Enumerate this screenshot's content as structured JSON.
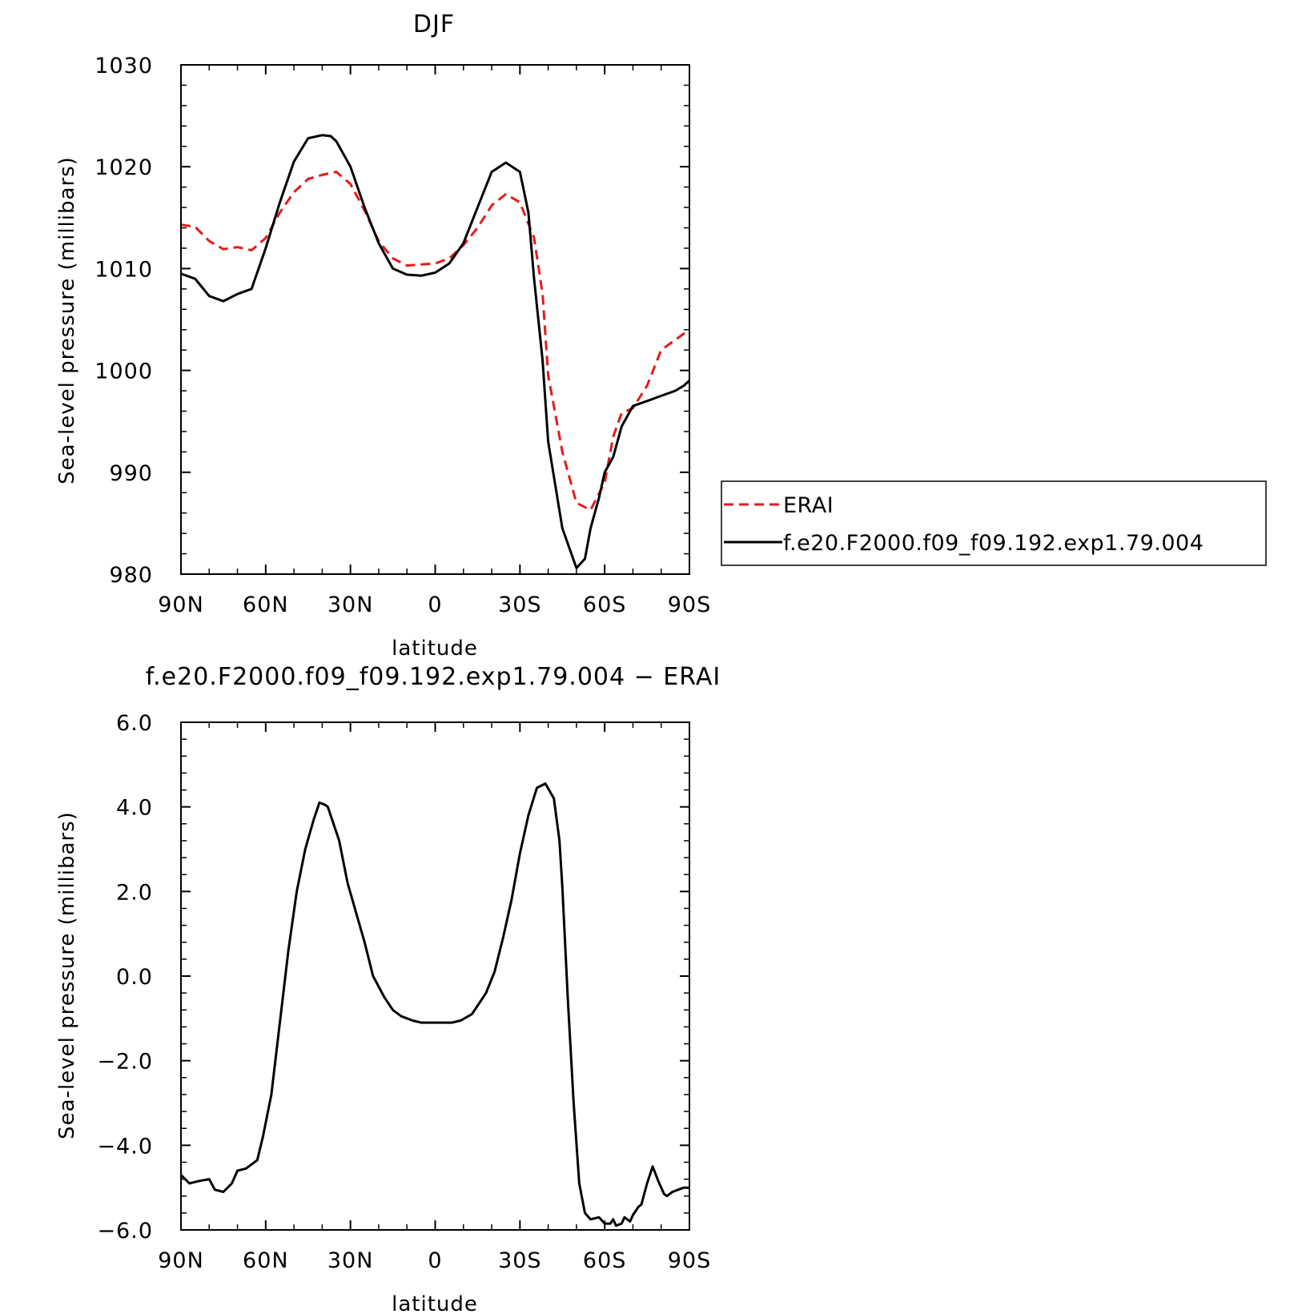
{
  "colors": {
    "erai": "#e41a1c",
    "model": "#000000",
    "axes": "#000000"
  },
  "chart_data": [
    {
      "type": "line",
      "title": "DJF",
      "xlabel": "latitude",
      "ylabel": "Sea-level pressure (millibars)",
      "xlim": [
        90,
        -90
      ],
      "ylim": [
        980,
        1030
      ],
      "xticks": [
        90,
        60,
        30,
        0,
        -30,
        -60,
        -90
      ],
      "xtick_labels": [
        "90N",
        "60N",
        "30N",
        "0",
        "30S",
        "60S",
        "90S"
      ],
      "yticks": [
        980,
        990,
        1000,
        1010,
        1020,
        1030
      ],
      "ytick_labels": [
        "980",
        "990",
        "1000",
        "1010",
        "1020",
        "1030"
      ],
      "legend": {
        "placement": "right",
        "entries": [
          "ERAI",
          "f.e20.F2000.f09_f09.192.exp1.79.004"
        ]
      },
      "series": [
        {
          "name": "ERAI",
          "style": "dashed",
          "color": "#e41a1c",
          "x": [
            90,
            85,
            80,
            75,
            70,
            65,
            60,
            55,
            50,
            45,
            40,
            35,
            30,
            25,
            20,
            15,
            10,
            5,
            0,
            -5,
            -10,
            -15,
            -20,
            -25,
            -30,
            -35,
            -38,
            -40,
            -45,
            -50,
            -55,
            -60,
            -63,
            -66,
            -70,
            -75,
            -80,
            -85,
            -90
          ],
          "y": [
            1014.3,
            1014.1,
            1012.7,
            1011.9,
            1012.1,
            1011.8,
            1013.0,
            1015.5,
            1017.5,
            1018.8,
            1019.2,
            1019.5,
            1018.3,
            1015.7,
            1012.7,
            1011.0,
            1010.3,
            1010.4,
            1010.5,
            1011.0,
            1012.3,
            1014.0,
            1016.2,
            1017.3,
            1016.5,
            1013.0,
            1007.5,
            999.5,
            992.0,
            987.0,
            986.3,
            989.0,
            993.5,
            995.8,
            996.3,
            998.5,
            1002.0,
            1003.0,
            1004.0
          ]
        },
        {
          "name": "f.e20.F2000.f09_f09.192.exp1.79.004",
          "style": "solid",
          "color": "#000000",
          "x": [
            90,
            85,
            80,
            75,
            70,
            65,
            60,
            55,
            50,
            45,
            40,
            37,
            35,
            30,
            25,
            20,
            15,
            10,
            5,
            0,
            -5,
            -10,
            -15,
            -20,
            -25,
            -30,
            -33,
            -35,
            -38,
            -40,
            -45,
            -50,
            -53,
            -55,
            -58,
            -60,
            -63,
            -66,
            -70,
            -75,
            -80,
            -85,
            -88,
            -90
          ],
          "y": [
            1009.5,
            1009.0,
            1007.3,
            1006.8,
            1007.5,
            1008.0,
            1012.0,
            1016.5,
            1020.5,
            1022.8,
            1023.1,
            1023.0,
            1022.5,
            1020.0,
            1016.0,
            1012.5,
            1010.0,
            1009.4,
            1009.3,
            1009.6,
            1010.5,
            1012.5,
            1016.0,
            1019.5,
            1020.4,
            1019.5,
            1015.5,
            1009.0,
            1001.0,
            993.0,
            984.5,
            980.6,
            981.5,
            984.5,
            987.5,
            990.0,
            991.5,
            994.5,
            996.5,
            997.0,
            997.5,
            998.0,
            998.5,
            999.0
          ]
        }
      ]
    },
    {
      "type": "line",
      "title": "f.e20.F2000.f09_f09.192.exp1.79.004 − ERAI",
      "xlabel": "latitude",
      "ylabel": "Sea-level pressure (millibars)",
      "xlim": [
        90,
        -90
      ],
      "ylim": [
        -6,
        6
      ],
      "xticks": [
        90,
        60,
        30,
        0,
        -30,
        -60,
        -90
      ],
      "xtick_labels": [
        "90N",
        "60N",
        "30N",
        "0",
        "30S",
        "60S",
        "90S"
      ],
      "yticks": [
        -6,
        -4,
        -2,
        0,
        2,
        4,
        6
      ],
      "ytick_labels": [
        "−6.0",
        "−4.0",
        "−2.0",
        "0.0",
        "2.0",
        "4.0",
        "6.0"
      ],
      "series": [
        {
          "name": "",
          "style": "solid",
          "color": "#000000",
          "x": [
            90,
            87,
            84,
            80,
            78,
            75,
            72,
            70,
            67,
            63,
            61,
            58,
            55,
            52,
            49,
            46,
            43,
            41,
            39,
            38,
            36,
            34,
            31,
            28,
            25,
            22,
            18,
            15,
            12,
            8,
            5,
            2,
            0,
            -3,
            -6,
            -9,
            -13,
            -15,
            -18,
            -21,
            -24,
            -27,
            -30,
            -33,
            -36,
            -39,
            -42,
            -44,
            -45,
            -47,
            -49,
            -51,
            -53,
            -55,
            -58,
            -60,
            -62,
            -63,
            -64,
            -66,
            -67,
            -69,
            -70,
            -72,
            -73,
            -75,
            -77,
            -79,
            -81,
            -82,
            -84,
            -86,
            -88,
            -90
          ],
          "y": [
            -4.7,
            -4.9,
            -4.85,
            -4.8,
            -5.05,
            -5.1,
            -4.9,
            -4.6,
            -4.55,
            -4.35,
            -3.8,
            -2.8,
            -1.1,
            0.6,
            2.0,
            3.0,
            3.7,
            4.1,
            4.05,
            4.0,
            3.6,
            3.2,
            2.2,
            1.5,
            0.8,
            0.0,
            -0.5,
            -0.8,
            -0.95,
            -1.05,
            -1.1,
            -1.1,
            -1.1,
            -1.1,
            -1.1,
            -1.05,
            -0.9,
            -0.7,
            -0.4,
            0.1,
            0.9,
            1.8,
            2.9,
            3.8,
            4.45,
            4.55,
            4.2,
            3.2,
            2.1,
            -0.6,
            -3.0,
            -4.9,
            -5.6,
            -5.75,
            -5.7,
            -5.85,
            -5.85,
            -5.75,
            -5.9,
            -5.85,
            -5.7,
            -5.8,
            -5.65,
            -5.45,
            -5.4,
            -4.9,
            -4.5,
            -4.85,
            -5.15,
            -5.2,
            -5.1,
            -5.05,
            -5.0,
            -5.0
          ]
        }
      ]
    }
  ]
}
